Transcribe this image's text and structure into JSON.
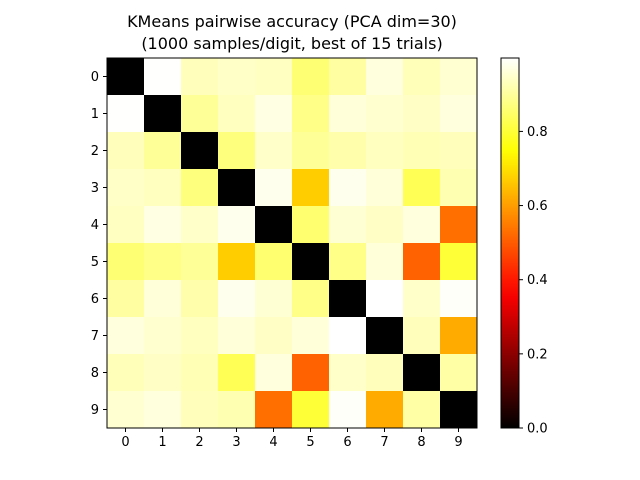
{
  "chart_data": {
    "type": "heatmap",
    "title_lines": [
      "KMeans pairwise accuracy (PCA dim=30)",
      "(1000 samples/digit, best of 15 trials)"
    ],
    "x_categories": [
      "0",
      "1",
      "2",
      "3",
      "4",
      "5",
      "6",
      "7",
      "8",
      "9"
    ],
    "y_categories": [
      "0",
      "1",
      "2",
      "3",
      "4",
      "5",
      "6",
      "7",
      "8",
      "9"
    ],
    "values": [
      [
        0.0,
        0.997,
        0.93,
        0.942,
        0.936,
        0.86,
        0.905,
        0.965,
        0.928,
        0.953
      ],
      [
        0.997,
        0.0,
        0.895,
        0.935,
        0.971,
        0.88,
        0.96,
        0.95,
        0.94,
        0.965
      ],
      [
        0.93,
        0.895,
        0.0,
        0.87,
        0.945,
        0.895,
        0.915,
        0.935,
        0.925,
        0.93
      ],
      [
        0.942,
        0.935,
        0.87,
        0.0,
        0.98,
        0.67,
        0.98,
        0.96,
        0.83,
        0.92
      ],
      [
        0.936,
        0.971,
        0.945,
        0.98,
        0.0,
        0.855,
        0.955,
        0.94,
        0.965,
        0.53
      ],
      [
        0.86,
        0.88,
        0.895,
        0.67,
        0.855,
        0.0,
        0.88,
        0.96,
        0.51,
        0.8
      ],
      [
        0.905,
        0.96,
        0.915,
        0.98,
        0.955,
        0.88,
        0.0,
        0.998,
        0.945,
        0.992
      ],
      [
        0.965,
        0.95,
        0.935,
        0.96,
        0.94,
        0.96,
        0.998,
        0.0,
        0.93,
        0.62
      ],
      [
        0.928,
        0.94,
        0.925,
        0.83,
        0.965,
        0.51,
        0.945,
        0.93,
        0.0,
        0.91
      ],
      [
        0.953,
        0.965,
        0.93,
        0.92,
        0.53,
        0.8,
        0.992,
        0.62,
        0.91,
        0.0
      ]
    ],
    "colormap": "hot",
    "vmin": 0.0,
    "vmax": 0.998,
    "colorbar_ticks": [
      "0.0",
      "0.2",
      "0.4",
      "0.6",
      "0.8"
    ],
    "colorbar_tick_values": [
      0.0,
      0.2,
      0.4,
      0.6,
      0.8
    ]
  }
}
